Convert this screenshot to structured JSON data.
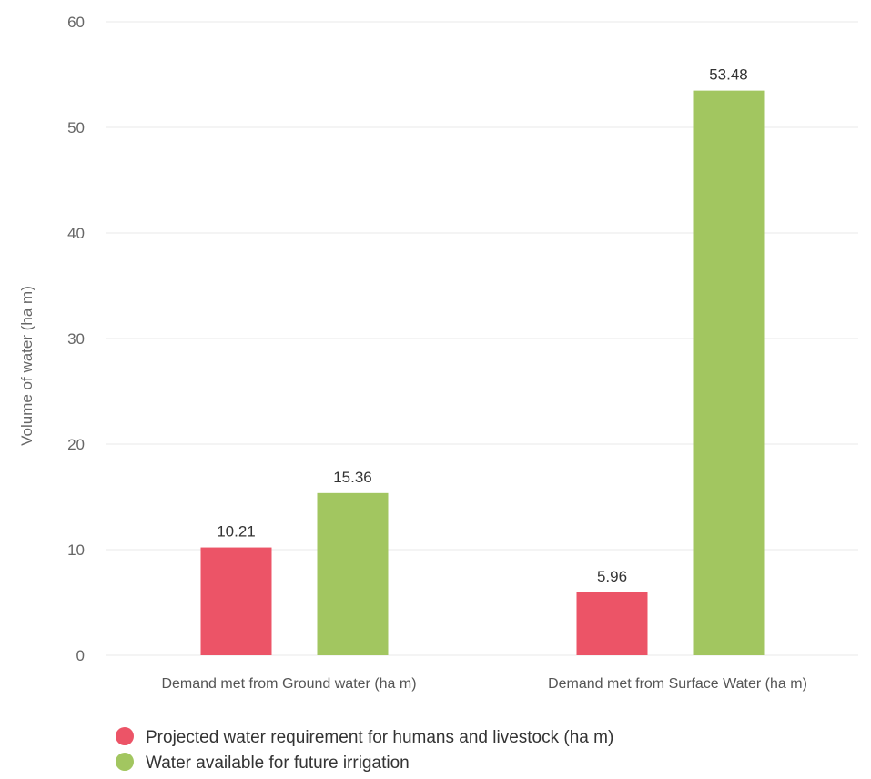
{
  "chart_data": {
    "type": "bar",
    "title": "",
    "xlabel": "",
    "ylabel": "Volume of water (ha m)",
    "ylim": [
      0,
      60
    ],
    "yticks": [
      0,
      10,
      20,
      30,
      40,
      50,
      60
    ],
    "grid": true,
    "legend_position": "bottom-left",
    "categories": [
      "Demand met from Ground water (ha m)",
      "Demand met from Surface Water (ha m)"
    ],
    "series": [
      {
        "name": "Projected water requirement for humans and livestock (ha m)",
        "color": "#ec5467",
        "values": [
          10.21,
          5.96
        ]
      },
      {
        "name": "Water available for future irrigation",
        "color": "#a2c660",
        "values": [
          15.36,
          53.48
        ]
      }
    ]
  }
}
